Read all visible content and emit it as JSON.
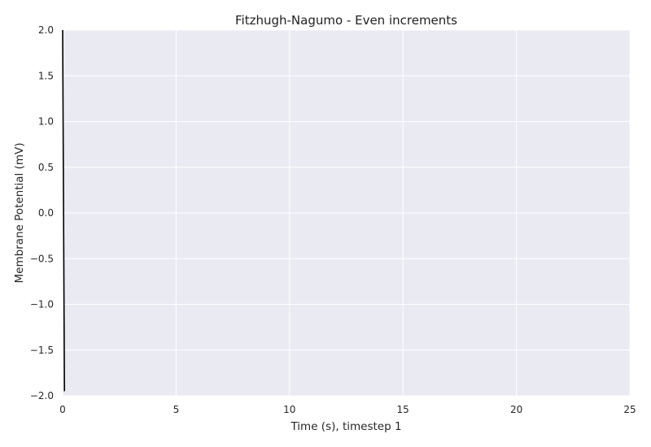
{
  "chart_data": {
    "type": "line",
    "title": "Fitzhugh-Nagumo - Even increments",
    "xlabel": "Time (s), timestep 1",
    "ylabel": "Membrane Potential (mV)",
    "xlim": [
      0,
      25
    ],
    "ylim": [
      -2.0,
      2.0
    ],
    "xticks": [
      0,
      5,
      10,
      15,
      20,
      25
    ],
    "xtick_labels": [
      "0",
      "5",
      "10",
      "15",
      "20",
      "25"
    ],
    "yticks": [
      2.0,
      1.5,
      1.0,
      0.5,
      0.0,
      -0.5,
      -1.0,
      -1.5,
      -2.0
    ],
    "ytick_labels": [
      "2.0",
      "1.5",
      "1.0",
      "0.5",
      "0.0",
      "−0.5",
      "−1.0",
      "−1.5",
      "−2.0"
    ],
    "grid": true,
    "legend": "none",
    "colors": {
      "background": "#eaeaf2",
      "grid": "#ffffff",
      "series": "#000000"
    },
    "series": [
      {
        "x": [
          0,
          0.01,
          0.02,
          0.03,
          0.04,
          0.05,
          0.06,
          0.07,
          0.08
        ],
        "y": [
          2.0,
          1.5,
          1.0,
          0.5,
          0.0,
          -0.5,
          -1.0,
          -1.5,
          -1.95
        ]
      }
    ]
  }
}
